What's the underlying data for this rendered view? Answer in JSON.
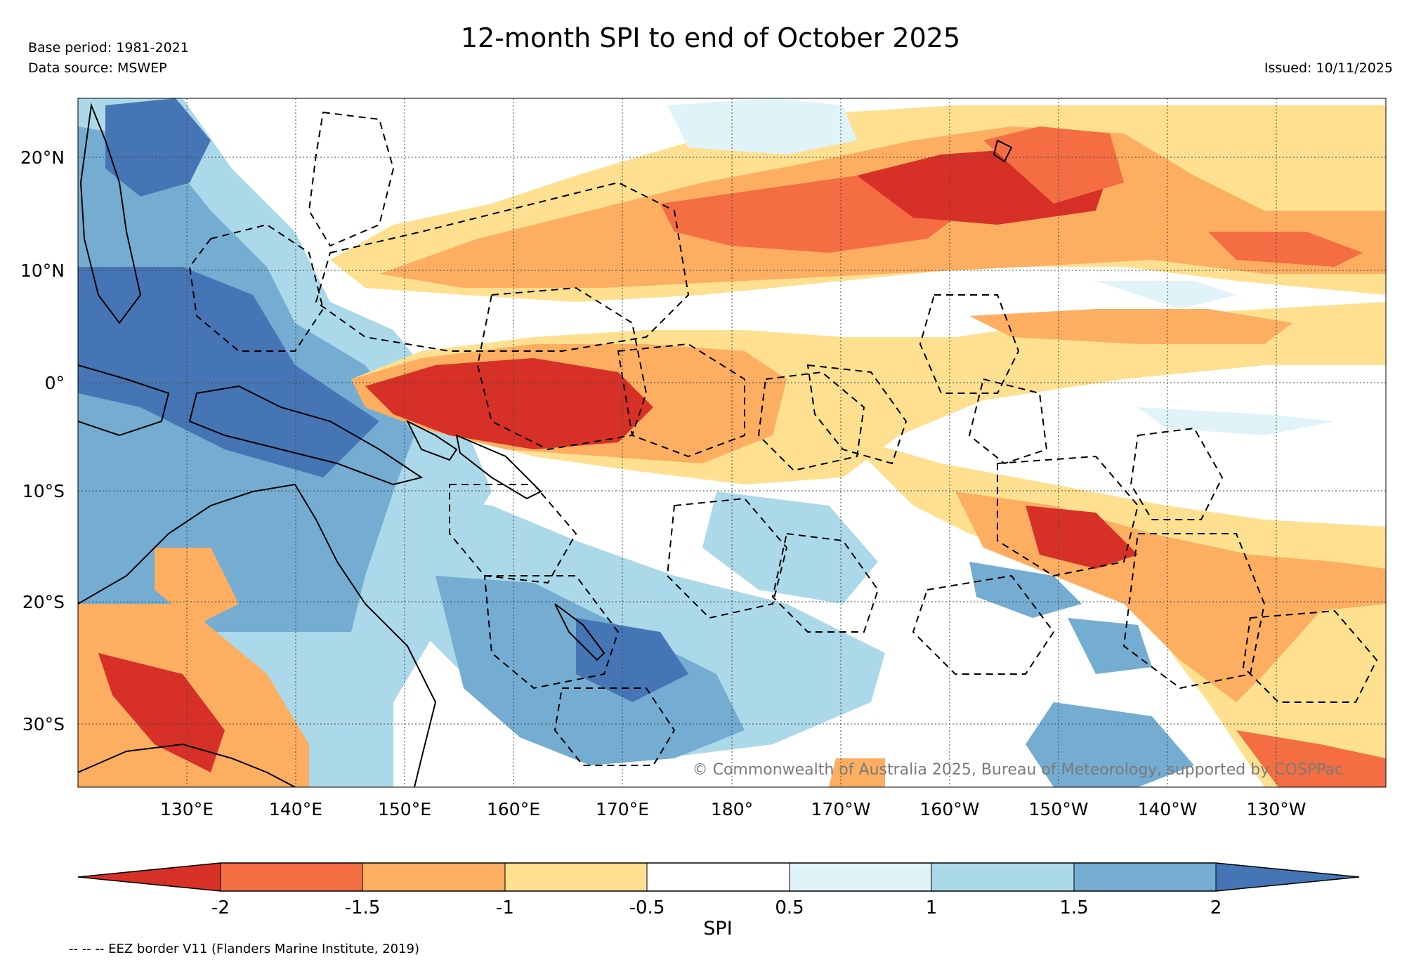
{
  "header": {
    "title": "12-month SPI to end of October 2025",
    "base_period": "Base period: 1981-2021",
    "data_source": "Data source: MSWEP",
    "issued": "Issued: 10/11/2025"
  },
  "map": {
    "lat_labels": [
      "20°N",
      "10°N",
      "0°",
      "10°S",
      "20°S",
      "30°S"
    ],
    "lon_labels": [
      "130°E",
      "140°E",
      "150°E",
      "160°E",
      "170°E",
      "180°",
      "170°W",
      "160°W",
      "150°W",
      "140°W",
      "130°W"
    ],
    "copyright": "© Commonwealth of Australia 2025, Bureau of Meteorology, supported by COSPPac"
  },
  "legend": {
    "label": "SPI",
    "ticks": [
      "-2",
      "-1.5",
      "-1",
      "-0.5",
      "0.5",
      "1",
      "1.5",
      "2"
    ],
    "colors": [
      "#d73027",
      "#f46d43",
      "#fdae61",
      "#fee090",
      "#ffffff",
      "#e0f3f8",
      "#abd9e9",
      "#74add1",
      "#4575b4"
    ]
  },
  "footnote": "-- -- -- EEZ border V11 (Flanders Marine Institute, 2019)"
}
